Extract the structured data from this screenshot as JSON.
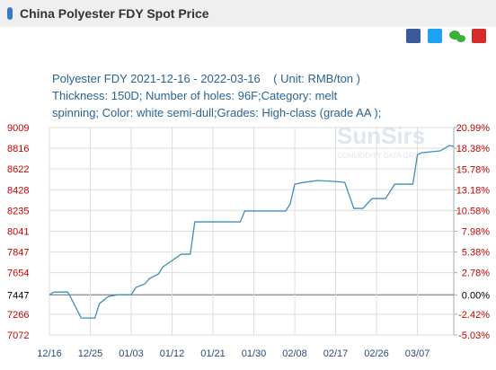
{
  "page_title": "China Polyester FDY Spot Price",
  "chart_data": {
    "type": "line",
    "title": "Polyester FDY 2021-12-16 - 2022-03-16    ( Unit: RMB/ton )",
    "subtitle": [
      "Thickness: 150D; Number of holes: 96F;Category: melt",
      "spinning; Color: white semi-dull;Grades: High-class (grade AA );"
    ],
    "watermark": [
      "SunSirs",
      "COMMODITY DATA GROUP"
    ],
    "xlim": [
      0,
      89
    ],
    "xticks": [
      {
        "value": 0,
        "label": "12/16"
      },
      {
        "value": 9,
        "label": "12/25"
      },
      {
        "value": 18,
        "label": "01/03"
      },
      {
        "value": 27,
        "label": "01/12"
      },
      {
        "value": 36,
        "label": "01/21"
      },
      {
        "value": 45,
        "label": "01/30"
      },
      {
        "value": 54,
        "label": "02/08"
      },
      {
        "value": 63,
        "label": "02/17"
      },
      {
        "value": 72,
        "label": "02/26"
      },
      {
        "value": 81,
        "label": "03/07"
      }
    ],
    "ylim": [
      7072,
      9009
    ],
    "yticks": [
      7072,
      7266,
      7447,
      7654,
      7847,
      8041,
      8235,
      8428,
      8622,
      8816,
      9009
    ],
    "y2lim": [
      -5.03,
      20.99
    ],
    "y2ticks": [
      {
        "value": -5.03,
        "label": "-5.03%"
      },
      {
        "value": -2.42,
        "label": "-2.42%"
      },
      {
        "value": 0,
        "label": "0.00%"
      },
      {
        "value": 2.78,
        "label": "2.78%"
      },
      {
        "value": 5.38,
        "label": "5.38%"
      },
      {
        "value": 7.98,
        "label": "7.98%"
      },
      {
        "value": 10.58,
        "label": "10.58%"
      },
      {
        "value": 13.18,
        "label": "13.18%"
      },
      {
        "value": 15.78,
        "label": "15.78%"
      },
      {
        "value": 18.38,
        "label": "18.38%"
      },
      {
        "value": 20.99,
        "label": "20.99%"
      }
    ],
    "baseline": 7447,
    "grid": true,
    "series": [
      {
        "color": "#3d8fb8",
        "x": [
          0,
          1,
          4,
          4.6,
          7,
          10,
          11,
          13,
          15,
          18,
          19,
          21,
          22,
          24,
          25,
          27,
          29,
          31,
          32,
          42,
          43,
          52,
          53,
          54,
          56,
          59,
          63,
          65,
          67,
          69,
          71,
          74,
          76,
          80,
          81,
          82,
          86,
          88,
          89
        ],
        "values": [
          7447,
          7473,
          7473,
          7430,
          7230,
          7230,
          7365,
          7432,
          7447,
          7447,
          7515,
          7549,
          7599,
          7641,
          7709,
          7767,
          7826,
          7826,
          8128,
          8128,
          8229,
          8229,
          8296,
          8480,
          8497,
          8514,
          8505,
          8497,
          8254,
          8254,
          8346,
          8346,
          8480,
          8480,
          8757,
          8774,
          8791,
          8841,
          8832
        ]
      }
    ]
  }
}
